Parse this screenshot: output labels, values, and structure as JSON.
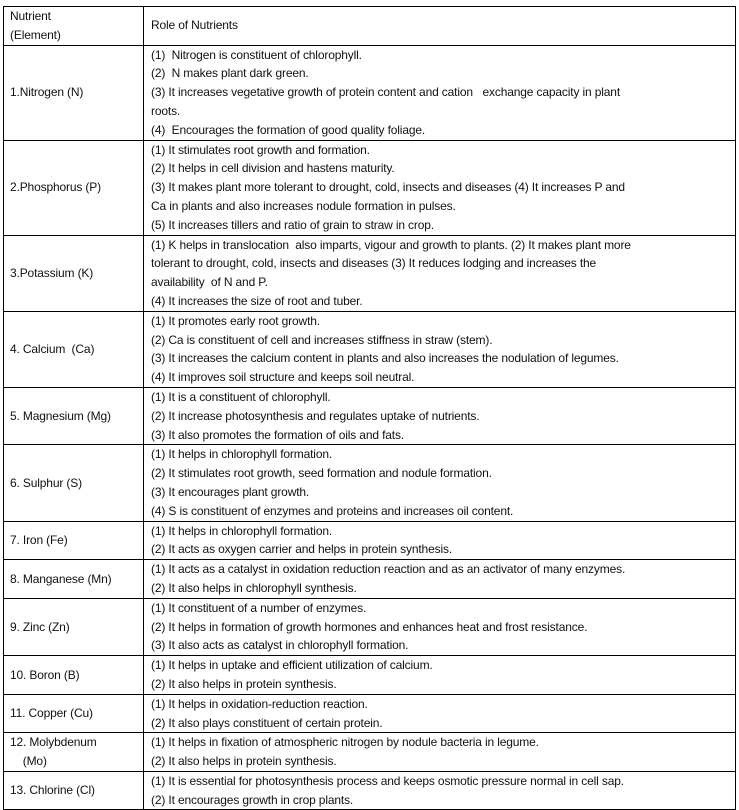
{
  "header": {
    "col1_line1": "Nutrient",
    "col1_line2": "(Element)",
    "col2": "Role of Nutrients"
  },
  "rows": [
    {
      "nutrient": [
        "1.Nitrogen (N)"
      ],
      "roles": [
        "(1)  Nitrogen is constituent of chlorophyll.",
        "(2)  N makes plant dark green.",
        "(3) It increases vegetative growth of protein content and cation   exchange capacity in plant",
        "roots.",
        "(4)  Encourages the formation of good quality foliage."
      ]
    },
    {
      "nutrient": [
        "2.Phosphorus (P)"
      ],
      "roles": [
        "(1) It stimulates root growth and formation.",
        "(2) It helps in cell division and hastens maturity.",
        "(3) It makes plant more tolerant to drought, cold, insects and diseases (4) It increases P and",
        "Ca in plants and also increases nodule formation in pulses.",
        "(5) It increases tillers and ratio of grain to straw in crop."
      ]
    },
    {
      "nutrient": [
        "3.Potassium (K)"
      ],
      "roles": [
        "(1) K helps in translocation  also imparts, vigour and growth to plants. (2) It makes plant more",
        "tolerant to drought, cold, insects and diseases (3) It reduces lodging and increases the",
        "availability  of N and P.",
        "(4) It increases the size of root and tuber."
      ]
    },
    {
      "nutrient": [
        "4. Calcium  (Ca)"
      ],
      "roles": [
        "(1) It promotes early root growth.",
        "(2) Ca is constituent of cell and increases stiffness in straw (stem).",
        "(3) It increases the calcium content in plants and also increases the nodulation of legumes.",
        "(4) It improves soil structure and keeps soil neutral."
      ]
    },
    {
      "nutrient": [
        "5. Magnesium (Mg)"
      ],
      "roles": [
        "(1) It is a constituent of chlorophyll.",
        "(2) It increase photosynthesis and regulates uptake of nutrients.",
        "(3) It also promotes the formation of oils and fats."
      ]
    },
    {
      "nutrient": [
        "6. Sulphur (S)"
      ],
      "roles": [
        "(1) It helps in chlorophyll formation.",
        "(2) It stimulates root growth, seed formation and nodule formation.",
        "(3) It encourages plant growth.",
        "(4) S is constituent of enzymes and proteins and increases oil content."
      ]
    },
    {
      "nutrient": [
        "7. Iron (Fe)"
      ],
      "roles": [
        "(1) It helps in chlorophyll formation.",
        "(2) It acts as oxygen carrier and helps in protein synthesis."
      ]
    },
    {
      "nutrient": [
        "8. Manganese (Mn)"
      ],
      "roles": [
        "(1) It acts as a catalyst in oxidation reduction reaction and as an activator of many enzymes.",
        "(2) It also helps in chlorophyll synthesis."
      ]
    },
    {
      "nutrient": [
        "9. Zinc (Zn)"
      ],
      "roles": [
        "(1) It constituent of a number of enzymes.",
        "(2) It helps in formation of growth hormones and enhances heat and frost resistance.",
        "(3) It also acts as catalyst in chlorophyll formation."
      ]
    },
    {
      "nutrient": [
        "10. Boron (B)"
      ],
      "roles": [
        "(1) It helps in uptake and efficient utilization of calcium.",
        "(2) It also helps in protein synthesis."
      ]
    },
    {
      "nutrient": [
        "11. Copper (Cu)"
      ],
      "roles": [
        "(1) It helps in oxidation-reduction reaction.",
        "(2) It also plays constituent of certain protein."
      ]
    },
    {
      "nutrient": [
        "12. Molybdenum",
        "    (Mo)"
      ],
      "roles": [
        "(1) It helps in fixation of atmospheric nitrogen by nodule bacteria in legume.",
        "(2) It also helps in protein synthesis."
      ]
    },
    {
      "nutrient": [
        "13. Chlorine (Cl)"
      ],
      "roles": [
        "(1) It is essential for photosynthesis process and keeps osmotic pressure normal in cell sap.",
        "(2) It encourages growth in crop plants."
      ]
    }
  ]
}
